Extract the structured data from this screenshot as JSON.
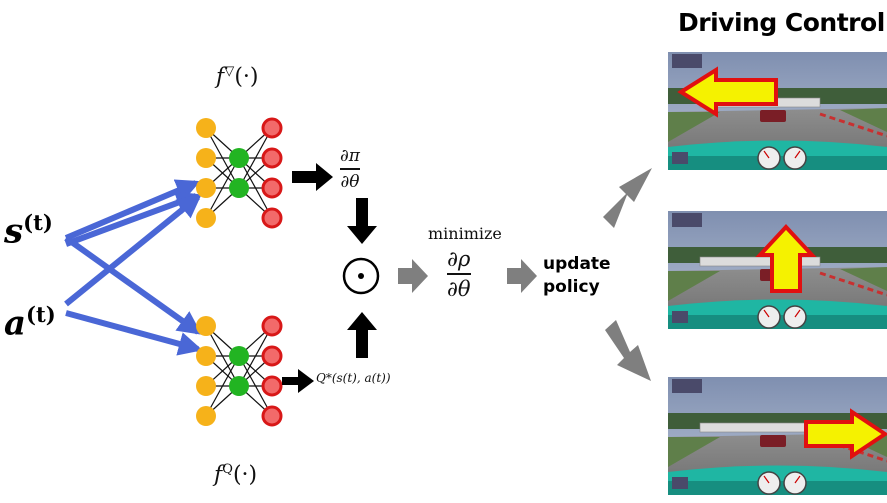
{
  "title": "Driving Control",
  "inputs": {
    "state": "s",
    "action": "a",
    "superscript": "(t)"
  },
  "networks": {
    "policy_fn": "f",
    "policy_sup": "▽",
    "value_fn": "f",
    "value_sup": "Q",
    "arg": "(·)"
  },
  "gradients": {
    "dpi_num": "∂π",
    "dpi_den": "∂θ",
    "q_star": "Q*(s(t), a(t))",
    "odot": "⊙",
    "minimize": "minimize",
    "drho_num": "∂ρ",
    "drho_den": "∂θ"
  },
  "update": {
    "line1": "update",
    "line2": "policy"
  },
  "frames": [
    {
      "action": "left"
    },
    {
      "action": "forward"
    },
    {
      "action": "right"
    }
  ],
  "colors": {
    "input_node": "#f6b21a",
    "hidden_node": "#22b422",
    "output_node": "#d81818",
    "input_arrow": "#4a67d6",
    "flow_arrow": "#7f7f7f",
    "control_arrow_fill": "#f5f200",
    "control_arrow_stroke": "#e11010"
  }
}
